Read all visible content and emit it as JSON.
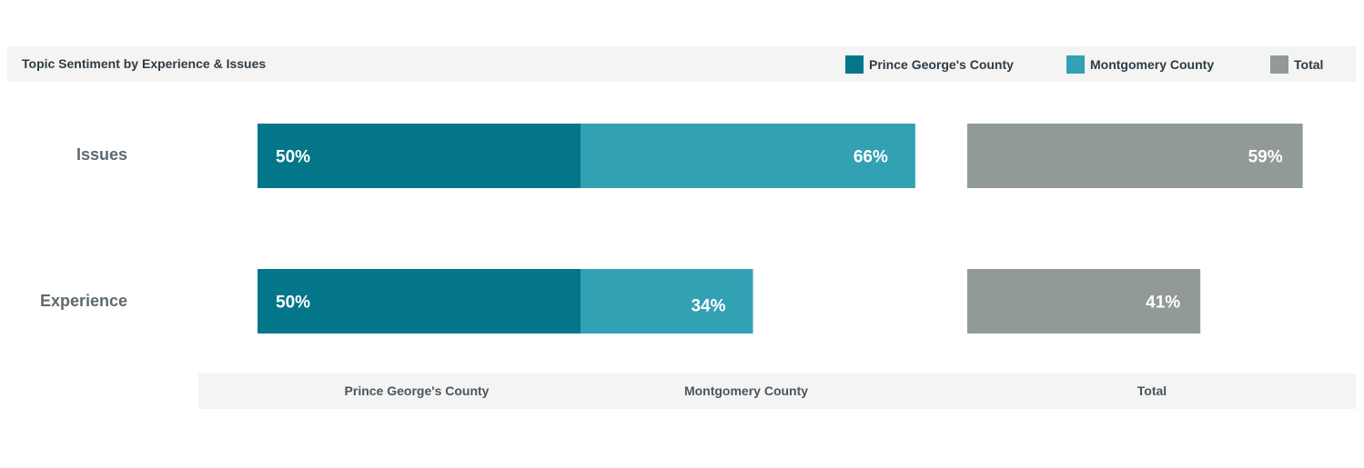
{
  "chart_data": {
    "type": "bar",
    "title": "Topic Sentiment by Experience & Issues",
    "categories": [
      "Issues",
      "Experience"
    ],
    "series": [
      {
        "name": "Prince George's County",
        "values": [
          50,
          50
        ],
        "labels": [
          "50%",
          "50%"
        ]
      },
      {
        "name": "Montgomery County",
        "values": [
          66,
          34
        ],
        "labels": [
          "66%",
          "34%"
        ]
      },
      {
        "name": "Total",
        "values": [
          59,
          41
        ],
        "labels": [
          "59%",
          "41%"
        ]
      }
    ],
    "column_headers": [
      "Prince George's County",
      "Montgomery County",
      "Total"
    ],
    "unit": "%",
    "legend_position": "top-right",
    "grid": false
  },
  "colors": {
    "prince_georges": "#037789",
    "montgomery": "#31a1b3",
    "total": "#929a99",
    "band": "#f4f4f4",
    "bar_label": "#ffffff"
  }
}
